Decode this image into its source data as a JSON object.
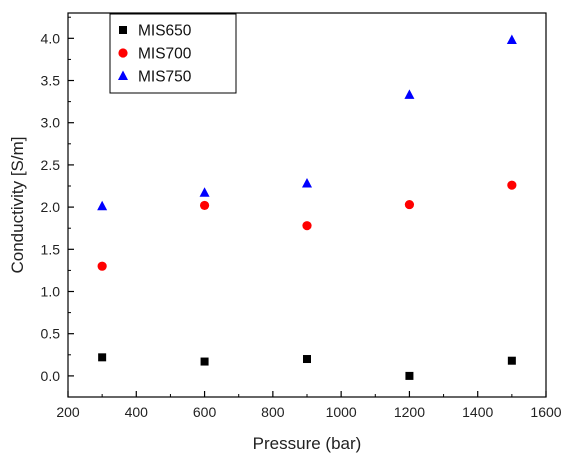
{
  "chart_data": {
    "type": "scatter",
    "title": "",
    "xlabel": "Pressure (bar)",
    "ylabel": "Conductivity [S/m]",
    "xlim": [
      200,
      1600
    ],
    "ylim": [
      -0.25,
      4.3
    ],
    "x_ticks": [
      "200",
      "400",
      "600",
      "800",
      "1000",
      "1200",
      "1400",
      "1600"
    ],
    "y_ticks": [
      "0.0",
      "0.5",
      "1.0",
      "1.5",
      "2.0",
      "2.5",
      "3.0",
      "3.5",
      "4.0"
    ],
    "x": [
      300,
      600,
      900,
      1200,
      1500
    ],
    "grid": false,
    "legend_position": "top-left",
    "series": [
      {
        "name": "MIS650",
        "marker": "square",
        "color": "#000000",
        "values": [
          0.22,
          0.17,
          0.2,
          0.0,
          0.18
        ]
      },
      {
        "name": "MIS700",
        "marker": "circle",
        "color": "#ff0000",
        "values": [
          1.3,
          2.02,
          1.78,
          2.03,
          2.26
        ]
      },
      {
        "name": "MIS750",
        "marker": "triangle",
        "color": "#0000ff",
        "values": [
          2.01,
          2.17,
          2.28,
          3.33,
          3.98
        ]
      }
    ]
  }
}
